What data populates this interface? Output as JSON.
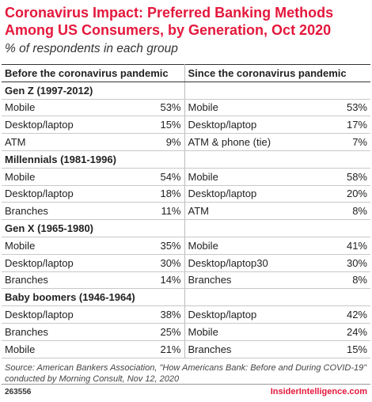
{
  "header": {
    "title": "Coronavirus Impact: Preferred Banking Methods Among US Consumers, by Generation, Oct 2020",
    "subtitle": "% of respondents in each group"
  },
  "table": {
    "columns": [
      "Before the coronavirus pandemic",
      "Since the coronavirus pandemic"
    ],
    "groups": [
      {
        "name": "Gen Z (1997-2012)",
        "rows": [
          [
            "Mobile",
            "53%",
            "Mobile",
            "53%"
          ],
          [
            "Desktop/laptop",
            "15%",
            "Desktop/laptop",
            "17%"
          ],
          [
            "ATM",
            "9%",
            "ATM & phone (tie)",
            "7%"
          ]
        ]
      },
      {
        "name": "Millennials (1981-1996)",
        "rows": [
          [
            "Mobile",
            "54%",
            "Mobile",
            "58%"
          ],
          [
            "Desktop/laptop",
            "18%",
            "Desktop/laptop",
            "20%"
          ],
          [
            "Branches",
            "11%",
            "ATM",
            "8%"
          ]
        ]
      },
      {
        "name": "Gen X (1965-1980)",
        "rows": [
          [
            "Mobile",
            "35%",
            "Mobile",
            "41%"
          ],
          [
            "Desktop/laptop",
            "30%",
            "Desktop/laptop30",
            "30%"
          ],
          [
            "Branches",
            "14%",
            "Branches",
            "8%"
          ]
        ]
      },
      {
        "name": "Baby boomers (1946-1964)",
        "rows": [
          [
            "Desktop/laptop",
            "38%",
            "Desktop/laptop",
            "42%"
          ],
          [
            "Branches",
            "25%",
            "Mobile",
            "24%"
          ],
          [
            "Mobile",
            "21%",
            "Branches",
            "15%"
          ]
        ]
      }
    ]
  },
  "footer": {
    "source": "Source: American Bankers Association, \"How Americans Bank: Before and During COVID-19\" conducted by Morning Consult, Nov 12, 2020",
    "code": "263556",
    "brand": "InsiderIntelligence.com"
  }
}
